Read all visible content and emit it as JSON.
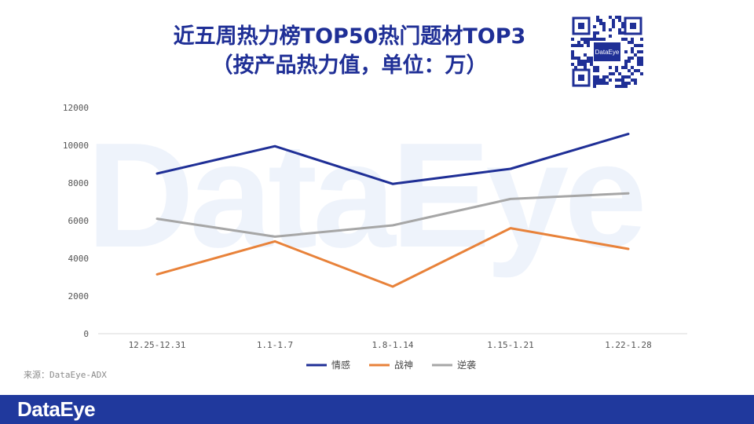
{
  "title": {
    "line1": "近五周热力榜TOP50热门题材TOP3",
    "line2": "（按产品热力值，单位：万）"
  },
  "watermark": "DataEye",
  "qr_label": "DataEye",
  "source": "来源：DataEye-ADX",
  "footer_logo": "DataEye",
  "colors": {
    "title": "#1f2f96",
    "footer": "#20399d",
    "series": [
      "#1f2f96",
      "#e8823a",
      "#a6a6a6"
    ]
  },
  "chart_data": {
    "type": "line",
    "title": "近五周热力榜TOP50热门题材TOP3（按产品热力值，单位：万）",
    "categories": [
      "12.25-12.31",
      "1.1-1.7",
      "1.8-1.14",
      "1.15-1.21",
      "1.22-1.28"
    ],
    "series": [
      {
        "name": "情感",
        "values": [
          8500,
          9950,
          7950,
          8750,
          10600
        ]
      },
      {
        "name": "战神",
        "values": [
          3150,
          4900,
          2500,
          5600,
          4500
        ]
      },
      {
        "name": "逆袭",
        "values": [
          6100,
          5150,
          5750,
          7150,
          7450
        ]
      }
    ],
    "ylim": [
      0,
      12000
    ],
    "yticks": [
      0,
      2000,
      4000,
      6000,
      8000,
      10000,
      12000
    ],
    "xlabel": "",
    "ylabel": "",
    "grid": false,
    "legend_position": "bottom"
  }
}
